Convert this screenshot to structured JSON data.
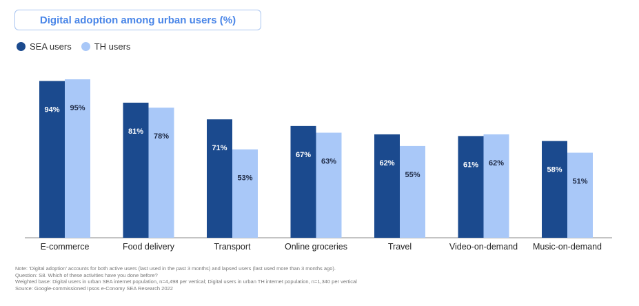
{
  "chart_data": {
    "type": "bar",
    "title": "Digital adoption among urban users (%)",
    "categories": [
      "E-commerce",
      "Food delivery",
      "Transport",
      "Online groceries",
      "Travel",
      "Video-on-demand",
      "Music-on-demand"
    ],
    "series": [
      {
        "name": "SEA users",
        "color": "#1b4a8e",
        "label_color": "#ffffff",
        "values": [
          94,
          81,
          71,
          67,
          62,
          61,
          58
        ]
      },
      {
        "name": "TH users",
        "color": "#a9c8f8",
        "label_color": "#1f2a44",
        "values": [
          95,
          78,
          53,
          63,
          55,
          62,
          51
        ]
      }
    ],
    "ylim": [
      0,
      100
    ],
    "grid": false,
    "legend": "top-left",
    "xlabel": "",
    "ylabel": ""
  },
  "notes": [
    "Note: ‘Digital adoption’ accounts for both active users (last used in the past 3 months) and lapsed users (last used more than 3 months ago).",
    "Question: S8. Which of these activities have you done before?",
    "Weighted base: Digital users in urban SEA internet population, n=4,498 per vertical; Digital users in urban TH internet population, n=1,340 per vertical",
    "Source: Google-commissioned Ipsos e-Conomy SEA Research 2022"
  ]
}
